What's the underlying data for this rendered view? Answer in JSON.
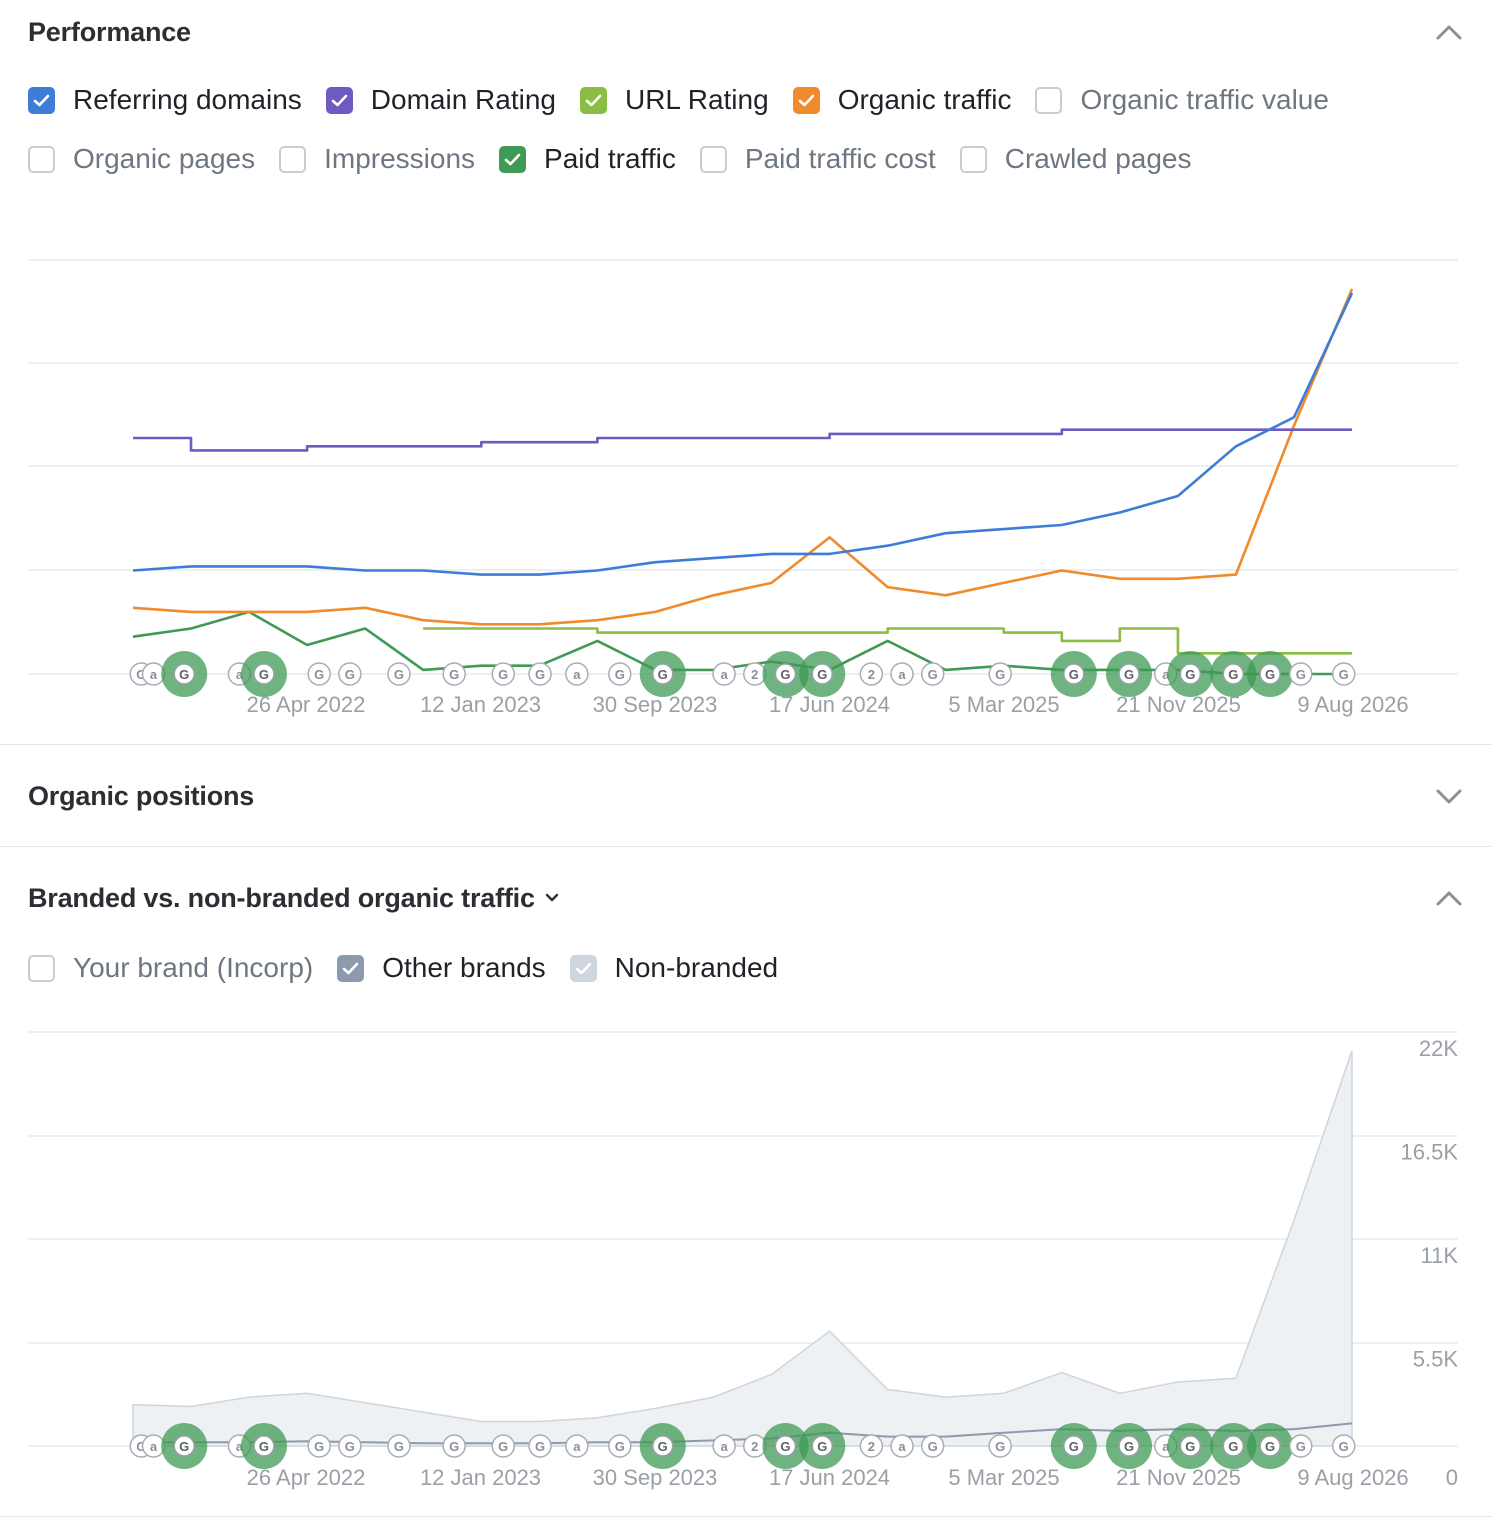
{
  "performance": {
    "title": "Performance",
    "legend_row1": [
      {
        "label": "Referring domains",
        "checked": true,
        "color": "#3d7dd8"
      },
      {
        "label": "Domain Rating",
        "checked": true,
        "color": "#6e5ac0"
      },
      {
        "label": "URL Rating",
        "checked": true,
        "color": "#8bbd45"
      },
      {
        "label": "Organic traffic",
        "checked": true,
        "color": "#f08a2c"
      },
      {
        "label": "Organic traffic value",
        "checked": false,
        "color": "#c9cdd2"
      }
    ],
    "legend_row2": [
      {
        "label": "Organic pages",
        "checked": false,
        "color": "#c9cdd2"
      },
      {
        "label": "Impressions",
        "checked": false,
        "color": "#c9cdd2"
      },
      {
        "label": "Paid traffic",
        "checked": true,
        "color": "#3f9a55"
      },
      {
        "label": "Paid traffic cost",
        "checked": false,
        "color": "#c9cdd2"
      },
      {
        "label": "Crawled pages",
        "checked": false,
        "color": "#c9cdd2"
      }
    ]
  },
  "organic_positions": {
    "title": "Organic positions"
  },
  "branded": {
    "title": "Branded vs. non-branded organic traffic",
    "legend": [
      {
        "label": "Your brand (Incorp)",
        "checked": false,
        "color": "#c9cdd2"
      },
      {
        "label": "Other brands",
        "checked": true,
        "color": "#8d99ad"
      },
      {
        "label": "Non-branded",
        "checked": true,
        "color": "#d0d6de"
      }
    ]
  },
  "chart_data": [
    {
      "type": "line",
      "name": "performance",
      "x_ticks": [
        "26 Apr 2022",
        "12 Jan 2023",
        "30 Sep 2023",
        "17 Jun 2024",
        "5 Mar 2025",
        "21 Nov 2025",
        "9 Aug 2026"
      ],
      "x": [
        "Aug 2021",
        "Nov 2021",
        "Feb 2022",
        "Apr 2022",
        "Jul 2022",
        "Oct 2022",
        "Jan 2023",
        "Apr 2023",
        "Jul 2023",
        "Oct 2023",
        "Jan 2024",
        "Apr 2024",
        "Jun 2024",
        "Sep 2024",
        "Dec 2024",
        "Mar 2025",
        "Jun 2025",
        "Sep 2025",
        "Nov 2025",
        "Feb 2026",
        "May 2026",
        "Aug 2026"
      ],
      "series": [
        {
          "name": "Referring domains",
          "color": "#3d7dd8",
          "values": [
            0.25,
            0.26,
            0.26,
            0.26,
            0.25,
            0.25,
            0.24,
            0.24,
            0.25,
            0.27,
            0.28,
            0.29,
            0.29,
            0.31,
            0.34,
            0.35,
            0.36,
            0.39,
            0.43,
            0.55,
            0.62,
            0.92
          ]
        },
        {
          "name": "Domain Rating",
          "color": "#6e5ac0",
          "values": [
            0.57,
            0.54,
            0.54,
            0.55,
            0.55,
            0.55,
            0.56,
            0.56,
            0.57,
            0.57,
            0.57,
            0.57,
            0.58,
            0.58,
            0.58,
            0.58,
            0.59,
            0.59,
            0.59,
            0.59,
            0.59,
            0.59
          ]
        },
        {
          "name": "URL Rating",
          "color": "#8bbd45",
          "values": [
            null,
            null,
            null,
            null,
            null,
            0.11,
            0.11,
            0.11,
            0.1,
            0.1,
            0.1,
            0.1,
            0.1,
            0.11,
            0.11,
            0.1,
            0.08,
            0.11,
            0.05,
            0.05,
            0.05,
            0.05
          ]
        },
        {
          "name": "Organic traffic",
          "color": "#f08a2c",
          "values": [
            0.16,
            0.15,
            0.15,
            0.15,
            0.16,
            0.13,
            0.12,
            0.12,
            0.13,
            0.15,
            0.19,
            0.22,
            0.33,
            0.21,
            0.19,
            0.22,
            0.25,
            0.23,
            0.23,
            0.24,
            0.6,
            0.93
          ]
        },
        {
          "name": "Paid traffic",
          "color": "#3f9a55",
          "values": [
            0.09,
            0.11,
            0.15,
            0.07,
            0.11,
            0.01,
            0.02,
            0.02,
            0.08,
            0.01,
            0.01,
            0.03,
            0.01,
            0.08,
            0.01,
            0.02,
            0.01,
            0.01,
            0.01,
            0.0,
            0.0,
            0.0
          ]
        }
      ]
    },
    {
      "type": "area",
      "name": "branded",
      "x_ticks": [
        "26 Apr 2022",
        "12 Jan 2023",
        "30 Sep 2023",
        "17 Jun 2024",
        "5 Mar 2025",
        "21 Nov 2025",
        "9 Aug 2026"
      ],
      "y_ticks": [
        "0",
        "5.5K",
        "11K",
        "16.5K",
        "22K"
      ],
      "ylim": [
        0,
        22000
      ],
      "x": [
        "Aug 2021",
        "Nov 2021",
        "Feb 2022",
        "Apr 2022",
        "Jul 2022",
        "Oct 2022",
        "Jan 2023",
        "Apr 2023",
        "Jul 2023",
        "Oct 2023",
        "Jan 2024",
        "Apr 2024",
        "Jun 2024",
        "Sep 2024",
        "Dec 2024",
        "Mar 2025",
        "Jun 2025",
        "Sep 2025",
        "Nov 2025",
        "Feb 2026",
        "May 2026",
        "Aug 2026"
      ],
      "series": [
        {
          "name": "Non-branded",
          "color": "#d0d6de",
          "values": [
            2200,
            2100,
            2600,
            2800,
            2300,
            1800,
            1300,
            1300,
            1500,
            2000,
            2600,
            3800,
            6100,
            3000,
            2600,
            2800,
            3900,
            2800,
            3400,
            3600,
            12000,
            21000
          ]
        },
        {
          "name": "Other brands",
          "color": "#8d99ad",
          "values": [
            200,
            200,
            200,
            250,
            200,
            150,
            150,
            150,
            200,
            200,
            300,
            400,
            700,
            500,
            500,
            700,
            900,
            800,
            900,
            800,
            900,
            1200
          ]
        }
      ]
    }
  ],
  "annotations": [
    {
      "x": 0.01,
      "type": "G"
    },
    {
      "x": 0.02,
      "type": "a"
    },
    {
      "x": 0.045,
      "type": "G",
      "big": true
    },
    {
      "x": 0.09,
      "type": "a"
    },
    {
      "x": 0.11,
      "type": "G",
      "big": true
    },
    {
      "x": 0.155,
      "type": "G"
    },
    {
      "x": 0.18,
      "type": "G"
    },
    {
      "x": 0.22,
      "type": "G"
    },
    {
      "x": 0.265,
      "type": "G"
    },
    {
      "x": 0.305,
      "type": "G"
    },
    {
      "x": 0.335,
      "type": "G"
    },
    {
      "x": 0.365,
      "type": "a"
    },
    {
      "x": 0.4,
      "type": "G"
    },
    {
      "x": 0.435,
      "type": "G",
      "big": true
    },
    {
      "x": 0.485,
      "type": "a"
    },
    {
      "x": 0.51,
      "type": "2"
    },
    {
      "x": 0.535,
      "type": "G",
      "big": true
    },
    {
      "x": 0.565,
      "type": "G",
      "big": true
    },
    {
      "x": 0.605,
      "type": "2"
    },
    {
      "x": 0.63,
      "type": "a"
    },
    {
      "x": 0.655,
      "type": "G"
    },
    {
      "x": 0.71,
      "type": "G"
    },
    {
      "x": 0.77,
      "type": "G",
      "big": true
    },
    {
      "x": 0.815,
      "type": "G",
      "big": true
    },
    {
      "x": 0.845,
      "type": "a"
    },
    {
      "x": 0.865,
      "type": "G",
      "big": true
    },
    {
      "x": 0.9,
      "type": "G",
      "big": true
    },
    {
      "x": 0.93,
      "type": "G",
      "big": true
    },
    {
      "x": 0.955,
      "type": "G"
    },
    {
      "x": 0.99,
      "type": "G"
    }
  ]
}
